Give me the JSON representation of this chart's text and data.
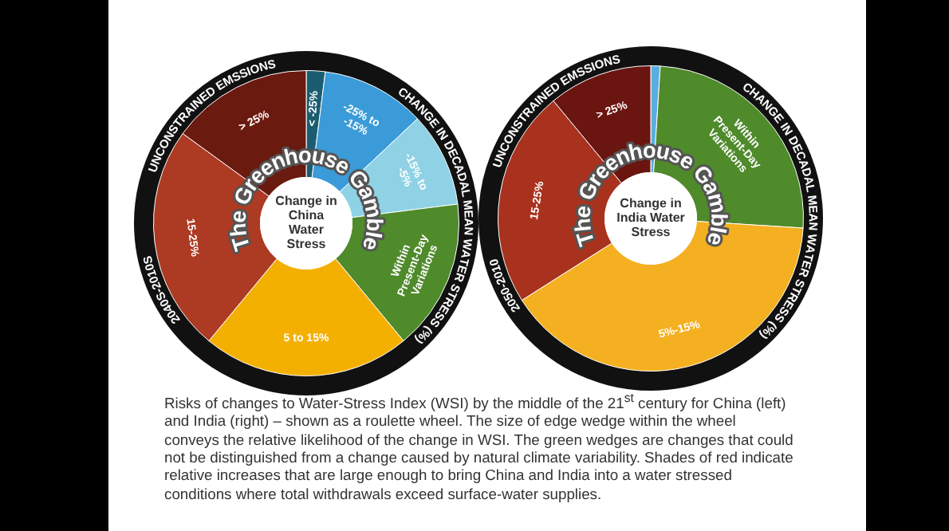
{
  "chart_data": [
    {
      "type": "donut",
      "title": "Change in China Water Stress",
      "subtitle": "The Greenhouse Gamble",
      "categories": [
        "< -25%",
        "-25% to -15%",
        "-15% to -5%",
        "Within Present-Day Variations",
        "5 to 15%",
        "15-25%",
        "> 25%"
      ],
      "values": [
        2,
        11,
        10,
        16,
        22,
        24,
        15
      ],
      "colors": [
        "#1b5d70",
        "#3a9bd8",
        "#8fd2e6",
        "#4f8a2b",
        "#f4b000",
        "#ad3a22",
        "#6b1a10"
      ],
      "legend": false,
      "annotations": [
        "UNCONSTRAINED EMSSIONS",
        "CHANGE IN DECADAL MEAN WATER STRESS (%)",
        "2040S-2010S",
        "Risks of changes to Water-Stress Index (WSI) by the middle of the 21$^{st}$ century for China (left) and India (right) – shown as a roulette wheel. The size of edge wedge within the wheel conveys the relative likelihood of the change in WSI. The green wedges are changes that could not be distinguished from a change caused by natural climate variability. Shades of red indicate relative increases that are large enough to bring China and India into a water stressed conditions where total withdrawals exceed surface-water supplies."
      ]
    },
    {
      "type": "donut",
      "title": "Change in India Water Stress",
      "subtitle": "The Greenhouse Gamble",
      "categories": [
        null,
        "Within Present-Day Variations",
        "5%-15%",
        "15-25%",
        "> 25%"
      ],
      "values": [
        1,
        25,
        40,
        23,
        11
      ],
      "colors": [
        "#5aaee0",
        "#4f8a2b",
        "#f4b020",
        "#a8321e",
        "#6a1510"
      ],
      "legend": false,
      "annotations": [
        "UNCONSTRAINED EMSSIONS",
        "CHANGE IN DECADAL MEAN WATER STRESS (%)",
        "2050-2010"
      ]
    }
  ]
}
